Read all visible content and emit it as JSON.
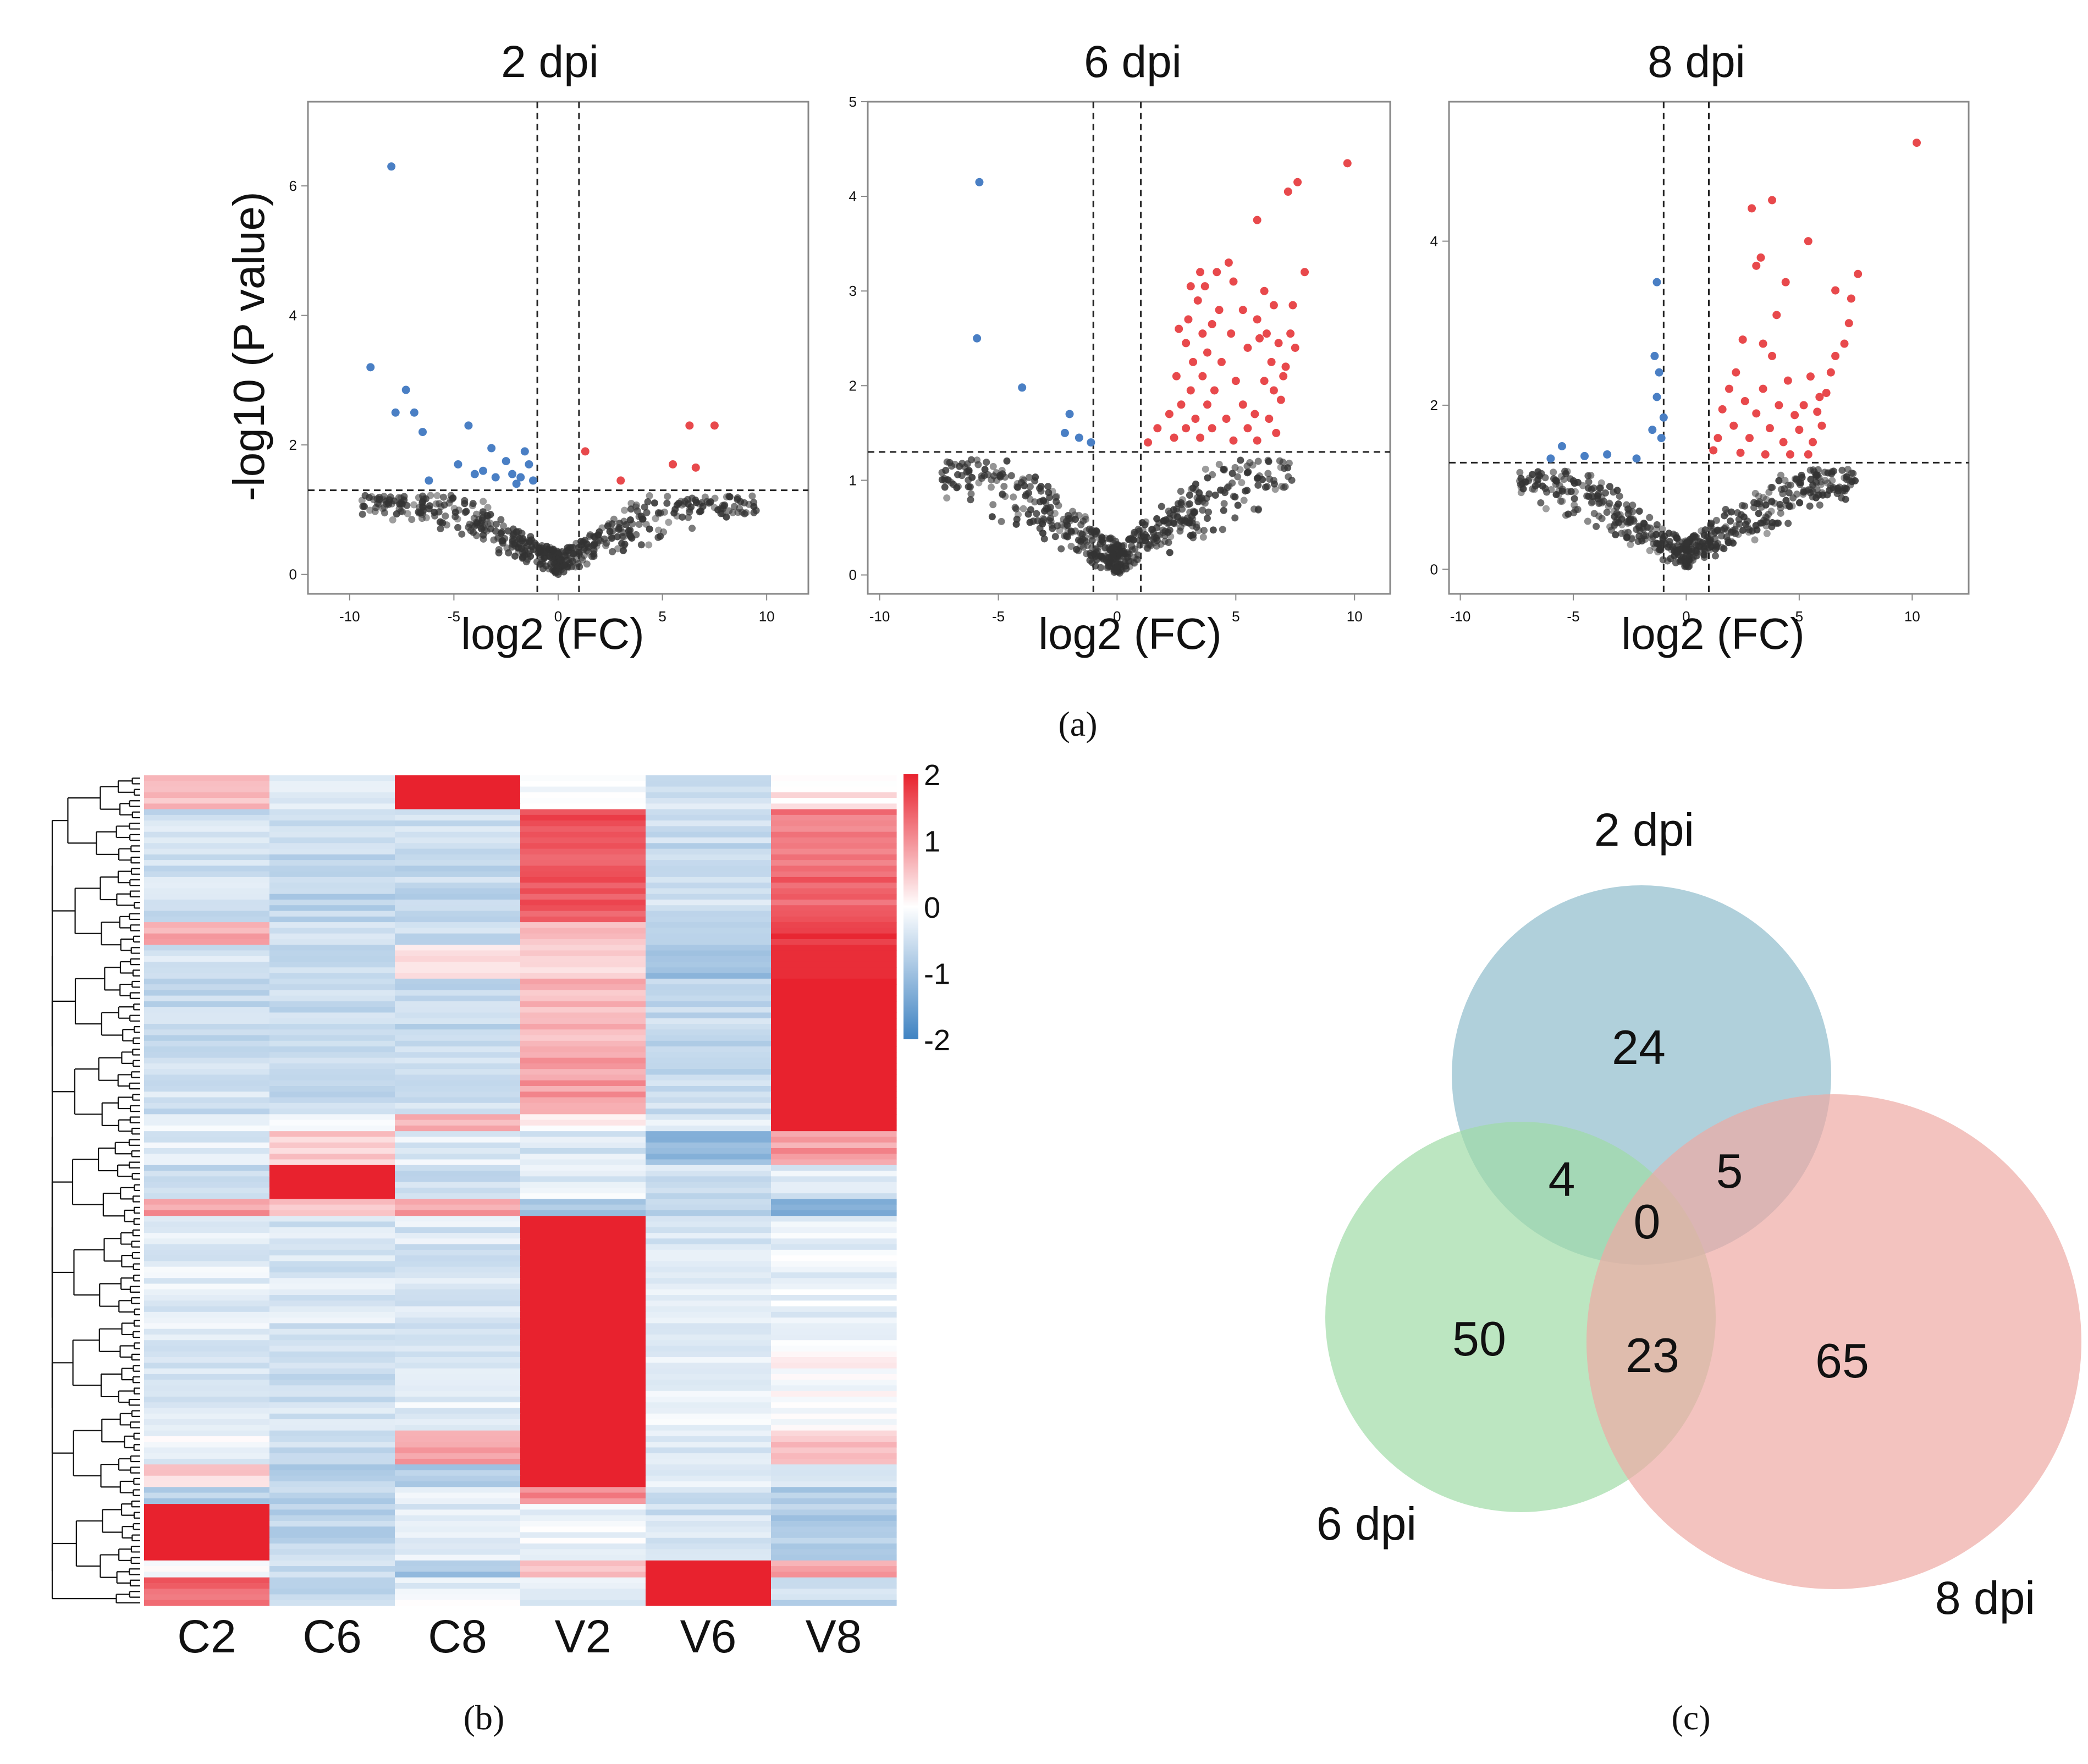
{
  "figure": {
    "panel_labels": [
      "(a)",
      "(b)",
      "(c)"
    ]
  },
  "colors": {
    "up": "#e8494c",
    "down": "#4a7fc4",
    "ns": "#333333",
    "heat_high": "#e8222e",
    "heat_mid": "#ffffff",
    "heat_low": "#3f83c2",
    "venn_2dpi": "#8fbccc",
    "venn_6dpi": "#9fdca6",
    "venn_8dpi": "#eeaaa4"
  },
  "chart_data": [
    {
      "type": "scatter",
      "subtype": "volcano",
      "title": "2 dpi",
      "xlabel": "log2 (FC)",
      "ylabel": "-log10 (P value)",
      "xlim": [
        -12,
        12
      ],
      "ylim": [
        -0.3,
        7.3
      ],
      "xticks": [
        -10,
        -5,
        0,
        5,
        10
      ],
      "yticks": [
        0,
        2,
        4,
        6
      ],
      "fc_cutoffs": [
        -1,
        1
      ],
      "p_cutoff": 1.3,
      "series": [
        {
          "name": "down",
          "points": [
            [
              -8,
              6.3
            ],
            [
              -9,
              3.2
            ],
            [
              -7.3,
              2.85
            ],
            [
              -7.8,
              2.5
            ],
            [
              -6.9,
              2.5
            ],
            [
              -6.5,
              2.2
            ],
            [
              -4.3,
              2.3
            ],
            [
              -3.2,
              1.95
            ],
            [
              -1.6,
              1.9
            ],
            [
              -4.8,
              1.7
            ],
            [
              -3.6,
              1.6
            ],
            [
              -2.5,
              1.75
            ],
            [
              -3.0,
              1.5
            ],
            [
              -4.0,
              1.55
            ],
            [
              -2.2,
              1.55
            ],
            [
              -1.8,
              1.5
            ],
            [
              -1.4,
              1.7
            ],
            [
              -1.2,
              1.45
            ],
            [
              -6.2,
              1.45
            ],
            [
              -2.0,
              1.4
            ]
          ]
        },
        {
          "name": "up",
          "points": [
            [
              7.5,
              2.3
            ],
            [
              6.3,
              2.3
            ],
            [
              5.5,
              1.7
            ],
            [
              6.6,
              1.65
            ],
            [
              3.0,
              1.45
            ],
            [
              1.3,
              1.9
            ]
          ]
        }
      ]
    },
    {
      "type": "scatter",
      "subtype": "volcano",
      "title": "6 dpi",
      "xlabel": "log2 (FC)",
      "ylabel": "",
      "xlim": [
        -10.5,
        11.5
      ],
      "ylim": [
        -0.2,
        5.0
      ],
      "xticks": [
        -10,
        -5,
        0,
        5,
        10
      ],
      "yticks": [
        0,
        1,
        2,
        3,
        4,
        5
      ],
      "fc_cutoffs": [
        -1,
        1
      ],
      "p_cutoff": 1.3,
      "series": [
        {
          "name": "down",
          "points": [
            [
              -5.8,
              4.15
            ],
            [
              -5.9,
              2.5
            ],
            [
              -4.0,
              1.98
            ],
            [
              -2.0,
              1.7
            ],
            [
              -2.2,
              1.5
            ],
            [
              -1.6,
              1.45
            ],
            [
              -1.1,
              1.4
            ]
          ]
        },
        {
          "name": "up",
          "points": [
            [
              9.7,
              4.35
            ],
            [
              7.6,
              4.15
            ],
            [
              7.2,
              4.05
            ],
            [
              5.9,
              3.75
            ],
            [
              4.7,
              3.3
            ],
            [
              3.5,
              3.2
            ],
            [
              4.2,
              3.2
            ],
            [
              4.9,
              3.1
            ],
            [
              3.1,
              3.05
            ],
            [
              3.7,
              3.05
            ],
            [
              6.2,
              3.0
            ],
            [
              7.9,
              3.2
            ],
            [
              3.4,
              2.9
            ],
            [
              4.3,
              2.8
            ],
            [
              5.3,
              2.8
            ],
            [
              6.6,
              2.85
            ],
            [
              7.4,
              2.85
            ],
            [
              3.0,
              2.7
            ],
            [
              4.0,
              2.65
            ],
            [
              5.9,
              2.7
            ],
            [
              2.6,
              2.6
            ],
            [
              3.6,
              2.55
            ],
            [
              4.8,
              2.55
            ],
            [
              6.3,
              2.55
            ],
            [
              7.3,
              2.55
            ],
            [
              6.0,
              2.5
            ],
            [
              2.9,
              2.45
            ],
            [
              3.8,
              2.35
            ],
            [
              5.5,
              2.4
            ],
            [
              6.8,
              2.45
            ],
            [
              7.5,
              2.4
            ],
            [
              3.2,
              2.25
            ],
            [
              4.4,
              2.25
            ],
            [
              6.5,
              2.25
            ],
            [
              7.1,
              2.2
            ],
            [
              2.5,
              2.1
            ],
            [
              3.6,
              2.1
            ],
            [
              5.0,
              2.05
            ],
            [
              6.2,
              2.05
            ],
            [
              7.0,
              2.1
            ],
            [
              3.1,
              1.95
            ],
            [
              4.1,
              1.95
            ],
            [
              6.6,
              1.95
            ],
            [
              2.7,
              1.8
            ],
            [
              3.8,
              1.8
            ],
            [
              5.3,
              1.8
            ],
            [
              6.9,
              1.85
            ],
            [
              2.2,
              1.7
            ],
            [
              3.3,
              1.65
            ],
            [
              4.6,
              1.65
            ],
            [
              5.8,
              1.7
            ],
            [
              6.4,
              1.65
            ],
            [
              1.7,
              1.55
            ],
            [
              2.9,
              1.55
            ],
            [
              4.0,
              1.55
            ],
            [
              5.5,
              1.55
            ],
            [
              6.7,
              1.5
            ],
            [
              2.4,
              1.45
            ],
            [
              3.5,
              1.45
            ],
            [
              1.3,
              1.4
            ],
            [
              4.9,
              1.42
            ],
            [
              5.9,
              1.42
            ]
          ]
        }
      ]
    },
    {
      "type": "scatter",
      "subtype": "volcano",
      "title": "8 dpi",
      "xlabel": "log2 (FC)",
      "ylabel": "",
      "xlim": [
        -10.5,
        12.5
      ],
      "ylim": [
        -0.3,
        5.7
      ],
      "xticks": [
        -10,
        -5,
        0,
        5,
        10
      ],
      "yticks": [
        0,
        2,
        4
      ],
      "fc_cutoffs": [
        -1,
        1
      ],
      "p_cutoff": 1.3,
      "series": [
        {
          "name": "down",
          "points": [
            [
              -1.3,
              3.5
            ],
            [
              -1.4,
              2.6
            ],
            [
              -1.2,
              2.4
            ],
            [
              -1.3,
              2.1
            ],
            [
              -1.0,
              1.85
            ],
            [
              -1.5,
              1.7
            ],
            [
              -1.1,
              1.6
            ],
            [
              -5.5,
              1.5
            ],
            [
              -6.0,
              1.35
            ],
            [
              -3.5,
              1.4
            ],
            [
              -4.5,
              1.38
            ],
            [
              -2.2,
              1.35
            ]
          ]
        },
        {
          "name": "up",
          "points": [
            [
              10.2,
              5.2
            ],
            [
              3.8,
              4.5
            ],
            [
              2.9,
              4.4
            ],
            [
              5.4,
              4.0
            ],
            [
              3.3,
              3.8
            ],
            [
              3.1,
              3.7
            ],
            [
              7.6,
              3.6
            ],
            [
              4.4,
              3.5
            ],
            [
              6.6,
              3.4
            ],
            [
              7.3,
              3.3
            ],
            [
              4.0,
              3.1
            ],
            [
              7.2,
              3.0
            ],
            [
              2.5,
              2.8
            ],
            [
              3.4,
              2.75
            ],
            [
              7.0,
              2.75
            ],
            [
              3.8,
              2.6
            ],
            [
              6.6,
              2.6
            ],
            [
              2.2,
              2.4
            ],
            [
              4.5,
              2.3
            ],
            [
              5.5,
              2.35
            ],
            [
              6.4,
              2.4
            ],
            [
              1.9,
              2.2
            ],
            [
              3.4,
              2.2
            ],
            [
              6.2,
              2.15
            ],
            [
              2.6,
              2.05
            ],
            [
              4.1,
              2.0
            ],
            [
              5.2,
              2.0
            ],
            [
              5.9,
              2.1
            ],
            [
              1.6,
              1.95
            ],
            [
              3.1,
              1.9
            ],
            [
              4.8,
              1.88
            ],
            [
              5.8,
              1.92
            ],
            [
              2.1,
              1.75
            ],
            [
              3.7,
              1.72
            ],
            [
              5.0,
              1.7
            ],
            [
              6.0,
              1.75
            ],
            [
              1.4,
              1.6
            ],
            [
              2.8,
              1.6
            ],
            [
              4.3,
              1.55
            ],
            [
              5.6,
              1.55
            ],
            [
              1.2,
              1.45
            ],
            [
              2.4,
              1.42
            ],
            [
              3.5,
              1.4
            ],
            [
              4.6,
              1.4
            ],
            [
              5.4,
              1.4
            ]
          ]
        }
      ]
    },
    {
      "type": "heatmap",
      "columns": [
        "C2",
        "C6",
        "C8",
        "V2",
        "V6",
        "V8"
      ],
      "colorbar": {
        "range": [
          -2,
          2
        ],
        "ticks": [
          "2",
          "1",
          "0",
          "-1",
          "-2"
        ]
      },
      "row_blocks": [
        {
          "rows": 6,
          "values": [
            0.6,
            -0.4,
            2.0,
            -0.2,
            -0.5,
            0.2
          ]
        },
        {
          "rows": 10,
          "values": [
            -0.5,
            -0.6,
            -0.5,
            1.6,
            -0.6,
            1.2
          ]
        },
        {
          "rows": 10,
          "values": [
            -0.5,
            -0.7,
            -0.6,
            1.5,
            -0.5,
            1.4
          ]
        },
        {
          "rows": 4,
          "values": [
            0.8,
            -0.5,
            -0.6,
            0.6,
            -0.8,
            1.8
          ]
        },
        {
          "rows": 6,
          "values": [
            -0.5,
            -0.6,
            0.2,
            0.4,
            -1.0,
            1.9
          ]
        },
        {
          "rows": 14,
          "values": [
            -0.6,
            -0.6,
            -0.6,
            0.6,
            -0.6,
            2.0
          ]
        },
        {
          "rows": 10,
          "values": [
            -0.5,
            -0.6,
            -0.5,
            0.9,
            -0.6,
            2.0
          ]
        },
        {
          "rows": 3,
          "values": [
            -0.2,
            -0.1,
            0.8,
            0.1,
            -0.4,
            2.0
          ]
        },
        {
          "rows": 6,
          "values": [
            -0.3,
            0.5,
            -0.3,
            -0.4,
            -1.1,
            0.9
          ]
        },
        {
          "rows": 6,
          "values": [
            -0.6,
            2.0,
            -0.5,
            -0.3,
            -0.5,
            -0.3
          ]
        },
        {
          "rows": 3,
          "values": [
            0.9,
            0.5,
            0.8,
            -0.9,
            -0.6,
            -1.2
          ]
        },
        {
          "rows": 24,
          "values": [
            -0.3,
            -0.4,
            -0.4,
            2.0,
            -0.4,
            -0.2
          ]
        },
        {
          "rows": 14,
          "values": [
            -0.4,
            -0.5,
            -0.3,
            2.0,
            -0.3,
            0.0
          ]
        },
        {
          "rows": 6,
          "values": [
            -0.2,
            -0.6,
            0.9,
            2.0,
            -0.3,
            0.6
          ]
        },
        {
          "rows": 4,
          "values": [
            0.4,
            -0.7,
            -0.8,
            2.0,
            -0.2,
            -0.3
          ]
        },
        {
          "rows": 3,
          "values": [
            -0.8,
            -0.7,
            -0.2,
            1.0,
            -0.6,
            -0.9
          ]
        },
        {
          "rows": 10,
          "values": [
            2.0,
            -0.7,
            -0.3,
            -0.2,
            -0.5,
            -0.8
          ]
        },
        {
          "rows": 3,
          "values": [
            -0.1,
            -0.5,
            -0.9,
            0.5,
            2.0,
            0.9
          ]
        },
        {
          "rows": 5,
          "values": [
            1.4,
            -0.6,
            -0.2,
            -0.4,
            2.0,
            -0.6
          ]
        }
      ]
    },
    {
      "type": "venn",
      "sets": [
        "2 dpi",
        "6 dpi",
        "8 dpi"
      ],
      "regions": {
        "2dpi_only": "24",
        "6dpi_only": "50",
        "8dpi_only": "65",
        "2dpi_6dpi": "4",
        "2dpi_8dpi": "5",
        "6dpi_8dpi": "23",
        "all": "0"
      }
    }
  ]
}
